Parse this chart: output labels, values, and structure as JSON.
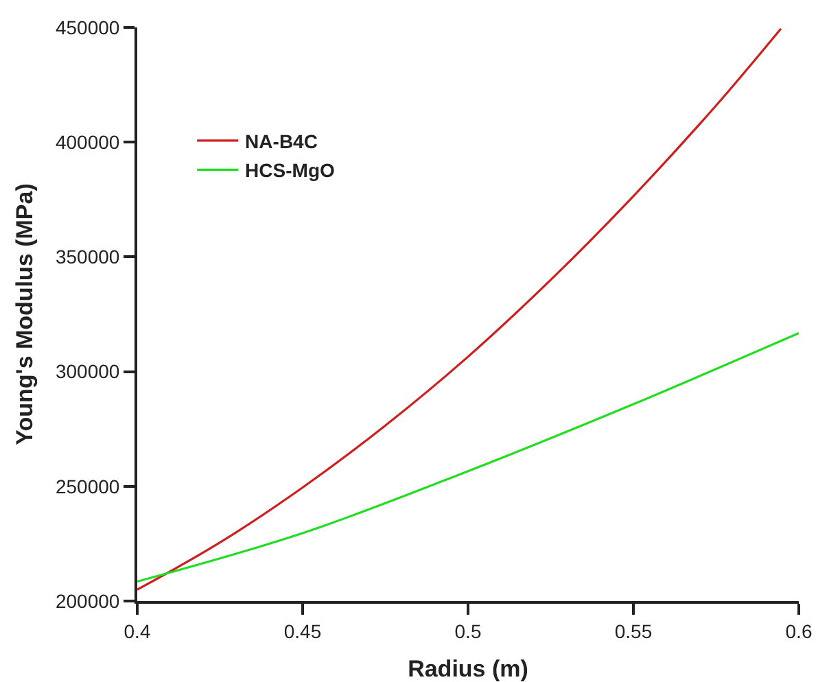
{
  "chart_data": {
    "type": "line",
    "xlabel": "Radius (m)",
    "ylabel": "Young's Modulus (MPa)",
    "x": [
      0.4,
      0.425,
      0.45,
      0.475,
      0.5,
      0.525,
      0.55,
      0.575,
      0.5946
    ],
    "series": [
      {
        "name": "NA-B4C",
        "color": "#cc2020",
        "values": [
          205000,
          225500,
          249500,
          276500,
          306500,
          340000,
          376500,
          416000,
          449500
        ]
      },
      {
        "name": "HCS-MgO",
        "x": [
          0.4,
          0.45,
          0.5,
          0.55,
          0.6
        ],
        "color": "#22dd22",
        "values": [
          208500,
          229600,
          256600,
          285800,
          316800
        ]
      }
    ],
    "xlim": [
      0.4,
      0.6
    ],
    "xticks": [
      0.4,
      0.45,
      0.5,
      0.55,
      0.6
    ],
    "ylim": [
      200000,
      450000
    ],
    "yticks": [
      200000,
      250000,
      300000,
      350000,
      400000,
      450000
    ],
    "grid": false,
    "legend": "top left",
    "line_style": "solid",
    "marker": "none"
  }
}
